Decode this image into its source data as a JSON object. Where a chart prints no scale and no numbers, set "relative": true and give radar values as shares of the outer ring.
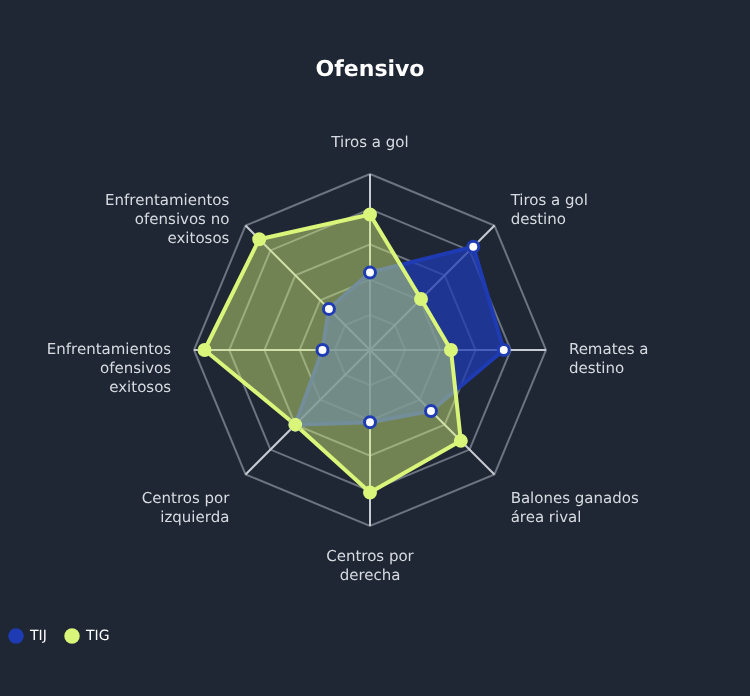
{
  "chart_data": {
    "type": "radar",
    "title": "Ofensivo",
    "categories": [
      "Tiros a gol",
      "Tiros a gol destino",
      "Remates a destino",
      "Balones ganados área rival",
      "Centros por derecha",
      "Centros por izquierda",
      "Enfrentamientos ofensivos exitosos",
      "Enfrentamientos ofensivos no exitosos"
    ],
    "relative": true,
    "grid": true,
    "legend": "bottom left",
    "marker": "circle",
    "series": [
      {
        "name": "TIJ",
        "color": "#1f3bb3",
        "values": [
          0.44,
          0.83,
          0.76,
          0.49,
          0.41,
          0.6,
          0.27,
          0.33
        ]
      },
      {
        "name": "TIG",
        "color": "#d9f57a",
        "values": [
          0.77,
          0.41,
          0.46,
          0.73,
          0.81,
          0.6,
          0.94,
          0.89
        ]
      }
    ]
  }
}
